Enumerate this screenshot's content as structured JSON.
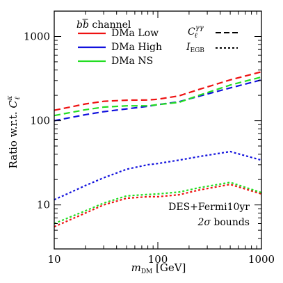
{
  "chart_data": {
    "type": "line",
    "xlabel": "m_DM [GeV]",
    "xlabel_main": "m",
    "xlabel_sub": "DM",
    "xlabel_unit": " [GeV]",
    "ylabel": "Ratio w.r.t. C_ℓ^κ",
    "ylabel_main": "Ratio w.r.t. ",
    "ylabel_sym": "C",
    "ylabel_sub": "ℓ",
    "ylabel_sup": "κ",
    "xscale": "log",
    "yscale": "log",
    "xlim": [
      10,
      1000
    ],
    "ylim": [
      3,
      2000
    ],
    "xticks": [
      10,
      100,
      1000
    ],
    "xtick_labels": [
      "10",
      "100",
      "1000"
    ],
    "yticks": [
      10,
      100,
      1000
    ],
    "ytick_labels": [
      "10",
      "100",
      "1000"
    ],
    "grid": false,
    "legend": {
      "placement": "top-left",
      "title": "bb̄ channel",
      "title_b": "b",
      "title_bbar": "b",
      "title_rest": " channel",
      "entries": [
        "DMa Low",
        "DMa High",
        "DMa NS"
      ]
    },
    "style_legend": {
      "placement": "top-right",
      "dashed_label_main": "C",
      "dashed_label_sub": "ℓ",
      "dashed_label_sup": "γγ",
      "dashed_label": "C_ℓ^γγ",
      "dotted_label_main": "I",
      "dotted_label_sub": "EGB",
      "dotted_label": "I_EGB"
    },
    "annotation": {
      "placement": "bottom-right",
      "line1": "DES+Fermi10yr",
      "line2_sym": "2σ",
      "line2_rest": " bounds"
    },
    "colors": {
      "DMa Low": "#ee1111",
      "DMa High": "#1111dd",
      "DMa NS": "#22dd22"
    },
    "series": [
      {
        "name": "DMa Low",
        "style": "dashed",
        "x": [
          10,
          20,
          30,
          50,
          80,
          100,
          160,
          250,
          500,
          1000
        ],
        "y": [
          133,
          158,
          170,
          175,
          176,
          180,
          197,
          235,
          305,
          380
        ]
      },
      {
        "name": "DMa High",
        "style": "dashed",
        "x": [
          10,
          20,
          30,
          50,
          80,
          100,
          160,
          250,
          500,
          1000
        ],
        "y": [
          100,
          118,
          128,
          138,
          148,
          155,
          168,
          195,
          245,
          305
        ]
      },
      {
        "name": "DMa NS",
        "style": "dashed",
        "x": [
          10,
          20,
          30,
          50,
          80,
          100,
          160,
          250,
          500,
          1000
        ],
        "y": [
          115,
          135,
          145,
          150,
          150,
          155,
          165,
          200,
          265,
          330
        ]
      },
      {
        "name": "DMa Low",
        "style": "dotted",
        "x": [
          10,
          20,
          30,
          50,
          80,
          100,
          160,
          250,
          500,
          1000
        ],
        "y": [
          5.5,
          8,
          10,
          12,
          12.5,
          12.5,
          13.2,
          15,
          17.5,
          13.5
        ]
      },
      {
        "name": "DMa High",
        "style": "dotted",
        "x": [
          10,
          20,
          30,
          50,
          80,
          100,
          160,
          250,
          500,
          1000
        ],
        "y": [
          11.5,
          17,
          21,
          26.5,
          30,
          31,
          34,
          37.5,
          43,
          34
        ]
      },
      {
        "name": "DMa NS",
        "style": "dotted",
        "x": [
          10,
          20,
          30,
          50,
          80,
          100,
          160,
          250,
          500,
          1000
        ],
        "y": [
          6,
          8.5,
          10.5,
          12.8,
          13.3,
          13.5,
          14.2,
          16,
          18.5,
          14
        ]
      }
    ]
  }
}
